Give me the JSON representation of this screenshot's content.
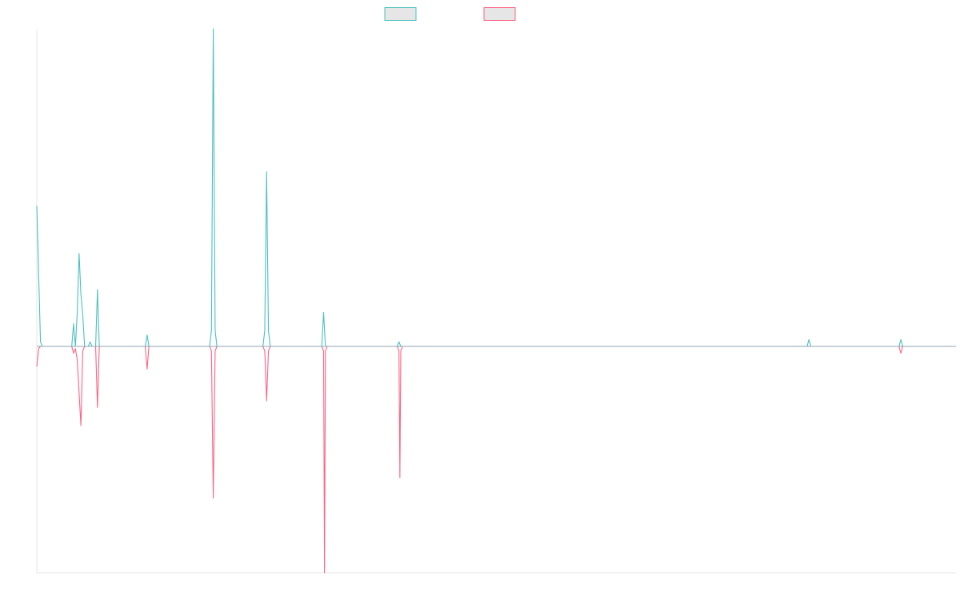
{
  "chart_data": {
    "type": "line",
    "grid": false,
    "legend_position": "top-center",
    "x_count": 501,
    "ylim": [
      -100,
      140
    ],
    "series": [
      {
        "color": "#4bc0c0",
        "legend_fill": "#e6e6e6",
        "points": [
          [
            0,
            62
          ],
          [
            2,
            2
          ],
          [
            3,
            0
          ],
          [
            19,
            0
          ],
          [
            20,
            10
          ],
          [
            21,
            0
          ],
          [
            22,
            15
          ],
          [
            23,
            41
          ],
          [
            24,
            23
          ],
          [
            25,
            14
          ],
          [
            26,
            0
          ],
          [
            28,
            0
          ],
          [
            29,
            2
          ],
          [
            30,
            0
          ],
          [
            32,
            0
          ],
          [
            33,
            25
          ],
          [
            34,
            0
          ],
          [
            44,
            0
          ],
          [
            45,
            0
          ],
          [
            59,
            0
          ],
          [
            60,
            5
          ],
          [
            61,
            0
          ],
          [
            94,
            0
          ],
          [
            95,
            7
          ],
          [
            96,
            140
          ],
          [
            97,
            7
          ],
          [
            98,
            0
          ],
          [
            123,
            0
          ],
          [
            124,
            7
          ],
          [
            125,
            77
          ],
          [
            126,
            7
          ],
          [
            127,
            0
          ],
          [
            155,
            0
          ],
          [
            156,
            15
          ],
          [
            157,
            0
          ],
          [
            196,
            0
          ],
          [
            197,
            2
          ],
          [
            198,
            0
          ],
          [
            280,
            0
          ],
          [
            281,
            0
          ],
          [
            282,
            0
          ],
          [
            380,
            0
          ],
          [
            381,
            0
          ],
          [
            382,
            0
          ],
          [
            419,
            0
          ],
          [
            420,
            3
          ],
          [
            421,
            0
          ],
          [
            469,
            0
          ],
          [
            470,
            3
          ],
          [
            471,
            0
          ],
          [
            500,
            0
          ]
        ]
      },
      {
        "color": "#ff6384",
        "legend_fill": "#e6e6e6",
        "points": [
          [
            0,
            -9
          ],
          [
            1,
            -1
          ],
          [
            2,
            0
          ],
          [
            19,
            0
          ],
          [
            20,
            -3
          ],
          [
            21,
            -1
          ],
          [
            22,
            -6
          ],
          [
            24,
            -35
          ],
          [
            25,
            -2
          ],
          [
            26,
            0
          ],
          [
            32,
            0
          ],
          [
            33,
            -27
          ],
          [
            34,
            0
          ],
          [
            59,
            0
          ],
          [
            60,
            -10
          ],
          [
            61,
            0
          ],
          [
            94,
            0
          ],
          [
            95,
            -2
          ],
          [
            96,
            -67
          ],
          [
            97,
            -2
          ],
          [
            98,
            0
          ],
          [
            123,
            0
          ],
          [
            124,
            -2
          ],
          [
            125,
            -24
          ],
          [
            126,
            -2
          ],
          [
            127,
            0
          ],
          [
            155,
            0
          ],
          [
            156,
            -2
          ],
          [
            156.5,
            -100
          ],
          [
            157,
            -2
          ],
          [
            158,
            0
          ],
          [
            196,
            0
          ],
          [
            197,
            -2
          ],
          [
            197.5,
            -58
          ],
          [
            198,
            -2
          ],
          [
            199,
            0
          ],
          [
            469,
            0
          ],
          [
            470,
            -3
          ],
          [
            471,
            0
          ],
          [
            500,
            0
          ]
        ]
      }
    ]
  }
}
